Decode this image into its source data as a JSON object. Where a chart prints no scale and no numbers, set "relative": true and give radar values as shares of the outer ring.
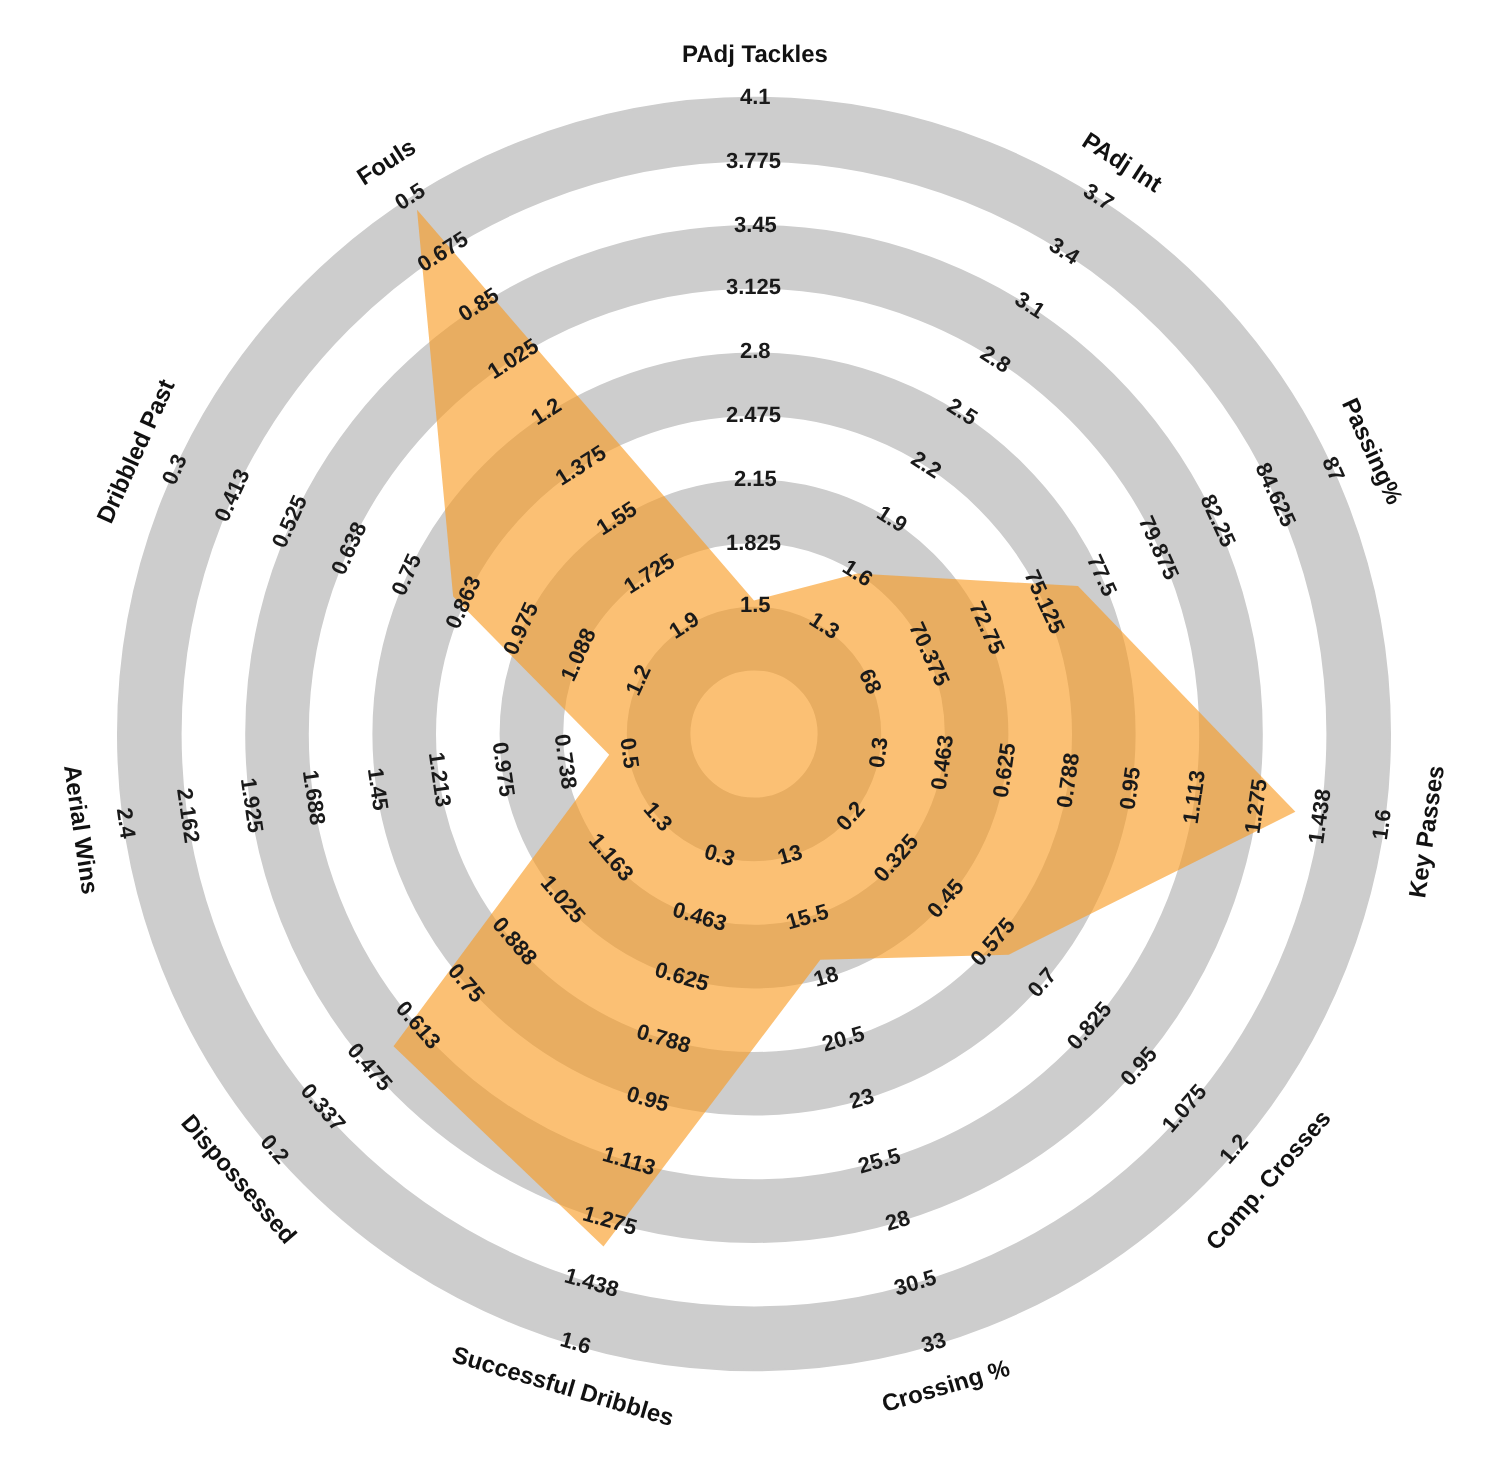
{
  "chart_data": {
    "type": "radar",
    "relative": true,
    "grid": true,
    "categories": [
      "PAdj Tackles",
      "PAdj Int",
      "Passing%",
      "Key Passes",
      "Comp. Crosses",
      "Crossing %",
      "Successful Dribbles",
      "Dispossessed",
      "Aerial Wins",
      "Dribbled Past",
      "Fouls"
    ],
    "series": [
      {
        "color": "#f99a1f",
        "values": [
          0.21,
          0.3,
          0.56,
          0.86,
          0.53,
          0.37,
          0.84,
          0.75,
          0.23,
          0.52,
          0.98
        ]
      }
    ],
    "annotations": [
      "1.5",
      "1.825",
      "2.15",
      "2.475",
      "2.8",
      "3.125",
      "3.45",
      "3.775",
      "4.1",
      "1.3",
      "1.6",
      "1.9",
      "2.2",
      "2.5",
      "2.8",
      "3.1",
      "3.4",
      "3.7",
      "68",
      "70.375",
      "72.75",
      "75.125",
      "77.5",
      "79.875",
      "82.25",
      "84.625",
      "87",
      "0.3",
      "0.463",
      "0.625",
      "0.788",
      "0.95",
      "1.113",
      "1.275",
      "1.438",
      "1.6",
      "0.2",
      "0.325",
      "0.45",
      "0.575",
      "0.7",
      "0.825",
      "0.95",
      "1.075",
      "1.2",
      "13",
      "15.5",
      "18",
      "20.5",
      "23",
      "25.5",
      "28",
      "30.5",
      "33",
      "0.3",
      "0.463",
      "0.625",
      "0.788",
      "0.95",
      "1.113",
      "1.275",
      "1.438",
      "1.6",
      "1.3",
      "1.163",
      "1.025",
      "0.888",
      "0.75",
      "0.613",
      "0.475",
      "0.337",
      "0.2",
      "0.5",
      "0.738",
      "0.975",
      "1.213",
      "1.45",
      "1.688",
      "1.925",
      "2.162",
      "2.4",
      "1.2",
      "1.088",
      "0.975",
      "0.863",
      "0.75",
      "0.638",
      "0.525",
      "0.413",
      "0.3",
      "1.9",
      "1.725",
      "1.55",
      "1.375",
      "1.2",
      "1.025",
      "0.85",
      "0.675",
      "0.5"
    ]
  }
}
